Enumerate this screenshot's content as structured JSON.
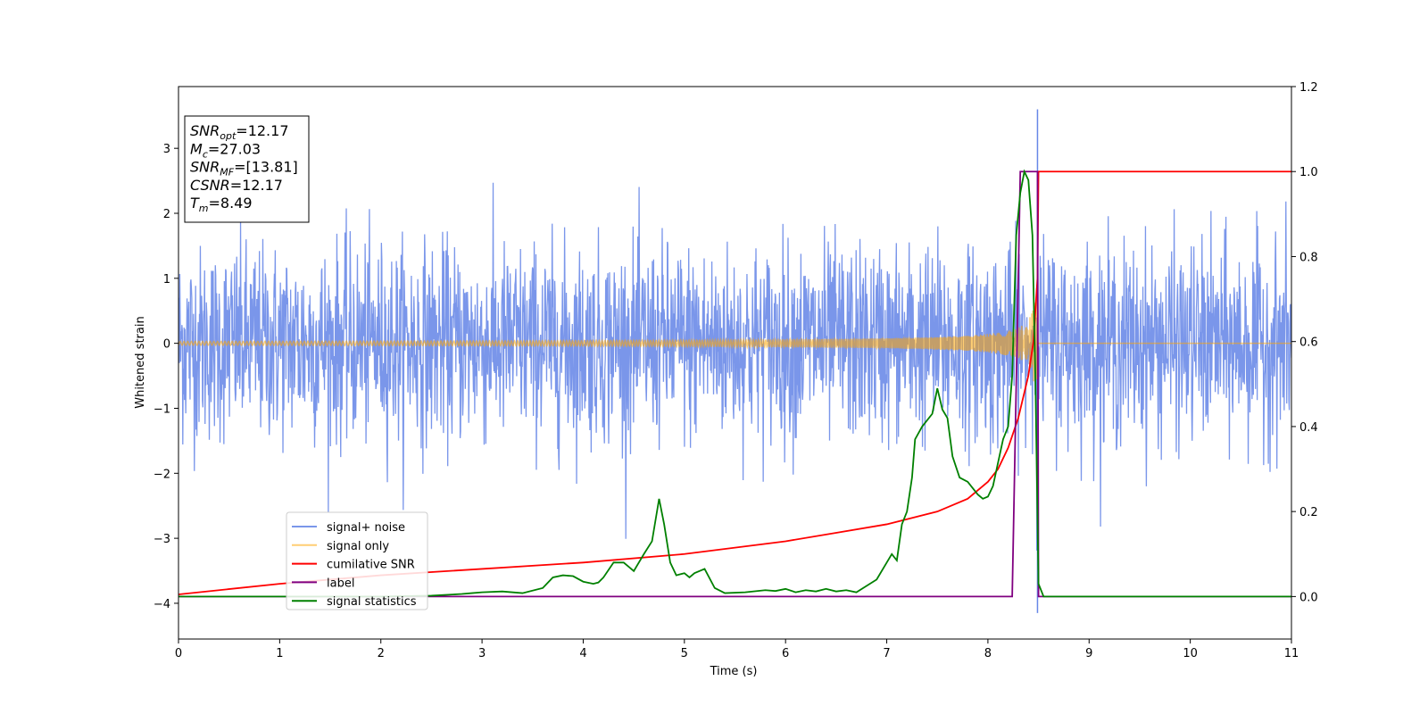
{
  "chart_data": {
    "type": "line",
    "xlabel": "Time (s)",
    "ylabel": "Whitened strain",
    "xlim": [
      0,
      11
    ],
    "ylim_left": [
      -4.55,
      3.95
    ],
    "ylim_right": [
      -0.1,
      1.2
    ],
    "x_ticks": [
      "0",
      "1",
      "2",
      "3",
      "4",
      "5",
      "6",
      "7",
      "8",
      "9",
      "10",
      "11"
    ],
    "y_left_ticks": [
      "-4",
      "-3",
      "-2",
      "-1",
      "0",
      "1",
      "2",
      "3"
    ],
    "y_left_tick_values": [
      -4,
      -3,
      -2,
      -1,
      0,
      1,
      2,
      3
    ],
    "y_right_ticks": [
      "0.0",
      "0.2",
      "0.4",
      "0.6",
      "0.8",
      "1.0",
      "1.2"
    ],
    "y_right_tick_values": [
      0.0,
      0.2,
      0.4,
      0.6,
      0.8,
      1.0,
      1.2
    ],
    "legend_position": "lower-left",
    "info_box": {
      "lines": [
        {
          "main": "SNR",
          "sub": "opt",
          "rest": "=12.17"
        },
        {
          "main": "M",
          "sub": "c",
          "rest": "=27.03"
        },
        {
          "main": "SNR",
          "sub": "MF",
          "rest": "=[13.81]"
        },
        {
          "main": "CSNR",
          "sub": "",
          "rest": "=12.17"
        },
        {
          "main": "T",
          "sub": "m",
          "rest": "=8.49"
        }
      ]
    },
    "series": [
      {
        "name": "signal+ noise",
        "color": "#4169e1",
        "axis": "left",
        "description_values": {
          "noise_sigma": 0.75,
          "spike_at": 8.49,
          "spike_max": 3.6,
          "spike_min": -4.15
        }
      },
      {
        "name": "signal only",
        "color": "#ffa500",
        "axis": "left",
        "chirp": {
          "start": 0,
          "merger": 8.49,
          "amp_start": 0.03,
          "amp_end": 0.9
        }
      },
      {
        "name": "cumilative SNR",
        "color": "#ff0000",
        "axis": "right",
        "x": [
          0,
          1,
          2,
          3,
          4,
          5,
          6,
          6.5,
          7,
          7.5,
          7.8,
          8.0,
          8.1,
          8.2,
          8.3,
          8.4,
          8.45,
          8.49,
          8.5,
          11
        ],
        "y": [
          0.005,
          0.03,
          0.05,
          0.065,
          0.08,
          0.1,
          0.13,
          0.15,
          0.17,
          0.2,
          0.23,
          0.27,
          0.3,
          0.35,
          0.42,
          0.52,
          0.6,
          0.75,
          1.0,
          1.0
        ]
      },
      {
        "name": "label",
        "color": "#800080",
        "axis": "right",
        "x": [
          0,
          8.24,
          8.32,
          8.49,
          8.5,
          11
        ],
        "y": [
          0,
          0,
          1,
          1,
          0,
          0
        ]
      },
      {
        "name": "signal statistics",
        "color": "#008000",
        "axis": "right",
        "x": [
          0,
          2.0,
          2.5,
          2.8,
          2.9,
          3.0,
          3.2,
          3.4,
          3.6,
          3.7,
          3.8,
          3.9,
          4.0,
          4.1,
          4.15,
          4.2,
          4.3,
          4.4,
          4.5,
          4.6,
          4.68,
          4.75,
          4.8,
          4.86,
          4.92,
          5.0,
          5.05,
          5.1,
          5.2,
          5.3,
          5.4,
          5.6,
          5.8,
          5.9,
          6.0,
          6.1,
          6.2,
          6.3,
          6.4,
          6.5,
          6.6,
          6.7,
          6.8,
          6.9,
          7.0,
          7.05,
          7.1,
          7.15,
          7.2,
          7.25,
          7.28,
          7.35,
          7.45,
          7.5,
          7.55,
          7.6,
          7.65,
          7.72,
          7.8,
          7.9,
          7.95,
          8.0,
          8.05,
          8.15,
          8.2,
          8.24,
          8.28,
          8.32,
          8.36,
          8.4,
          8.44,
          8.47,
          8.5,
          8.55,
          11
        ],
        "y": [
          0,
          0.0,
          0.002,
          0.006,
          0.008,
          0.01,
          0.012,
          0.008,
          0.02,
          0.045,
          0.05,
          0.048,
          0.035,
          0.03,
          0.033,
          0.045,
          0.08,
          0.08,
          0.06,
          0.1,
          0.13,
          0.23,
          0.17,
          0.08,
          0.05,
          0.055,
          0.045,
          0.055,
          0.065,
          0.02,
          0.008,
          0.01,
          0.015,
          0.013,
          0.018,
          0.01,
          0.015,
          0.012,
          0.018,
          0.012,
          0.015,
          0.01,
          0.025,
          0.04,
          0.08,
          0.1,
          0.085,
          0.17,
          0.2,
          0.28,
          0.37,
          0.4,
          0.43,
          0.49,
          0.44,
          0.42,
          0.33,
          0.28,
          0.27,
          0.24,
          0.23,
          0.235,
          0.26,
          0.37,
          0.4,
          0.52,
          0.85,
          0.95,
          1.0,
          0.98,
          0.85,
          0.5,
          0.03,
          0.0,
          0.0
        ]
      }
    ]
  }
}
